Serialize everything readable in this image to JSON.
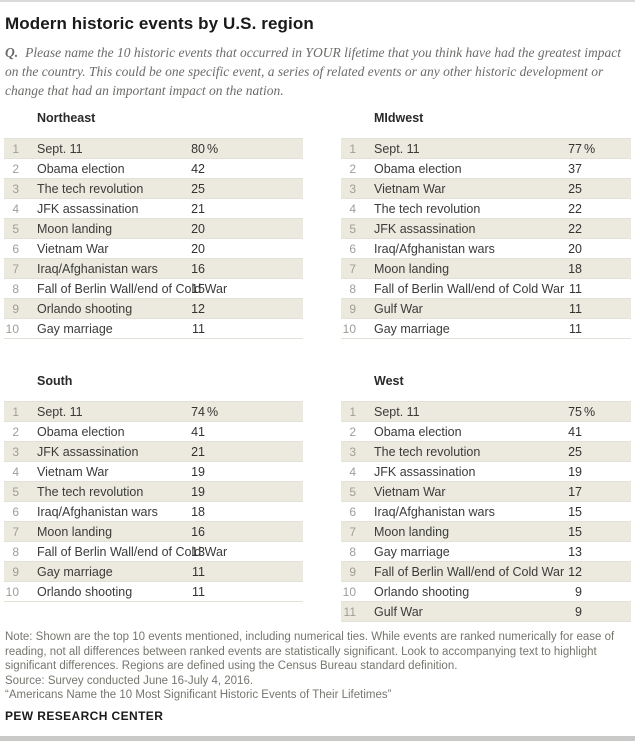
{
  "header": {
    "title": "Modern historic events by U.S. region",
    "question_prefix": "Q.",
    "question": "Please name the 10 historic events that occurred in YOUR lifetime that you think have had the greatest impact on the country. This could be one specific event, a series of related events or any other historic development or change that had an important impact on the nation."
  },
  "chart_data": {
    "type": "table",
    "title": "Modern historic events by U.S. region",
    "value_unit": "% of respondents",
    "tables": [
      {
        "region": "Northeast",
        "rows": [
          {
            "rank": "1",
            "event": "Sept. 11",
            "value": "80",
            "suffix": "%"
          },
          {
            "rank": "2",
            "event": "Obama election",
            "value": "42",
            "suffix": ""
          },
          {
            "rank": "3",
            "event": "The tech revolution",
            "value": "25",
            "suffix": ""
          },
          {
            "rank": "4",
            "event": "JFK assassination",
            "value": "21",
            "suffix": ""
          },
          {
            "rank": "5",
            "event": "Moon landing",
            "value": "20",
            "suffix": ""
          },
          {
            "rank": "6",
            "event": "Vietnam War",
            "value": "20",
            "suffix": ""
          },
          {
            "rank": "7",
            "event": "Iraq/Afghanistan wars",
            "value": "16",
            "suffix": ""
          },
          {
            "rank": "8",
            "event": "Fall of Berlin Wall/end of Cold War",
            "value": "15",
            "suffix": ""
          },
          {
            "rank": "9",
            "event": "Orlando shooting",
            "value": "12",
            "suffix": ""
          },
          {
            "rank": "10",
            "event": "Gay marriage",
            "value": "11",
            "suffix": ""
          }
        ]
      },
      {
        "region": "MIdwest",
        "rows": [
          {
            "rank": "1",
            "event": "Sept. 11",
            "value": "77",
            "suffix": "%"
          },
          {
            "rank": "2",
            "event": "Obama election",
            "value": "37",
            "suffix": ""
          },
          {
            "rank": "3",
            "event": "Vietnam War",
            "value": "25",
            "suffix": ""
          },
          {
            "rank": "4",
            "event": "The tech revolution",
            "value": "22",
            "suffix": ""
          },
          {
            "rank": "5",
            "event": "JFK assassination",
            "value": "22",
            "suffix": ""
          },
          {
            "rank": "6",
            "event": "Iraq/Afghanistan wars",
            "value": "20",
            "suffix": ""
          },
          {
            "rank": "7",
            "event": "Moon landing",
            "value": "18",
            "suffix": ""
          },
          {
            "rank": "8",
            "event": "Fall of Berlin Wall/end of Cold War",
            "value": "11",
            "suffix": ""
          },
          {
            "rank": "9",
            "event": "Gulf War",
            "value": "11",
            "suffix": ""
          },
          {
            "rank": "10",
            "event": "Gay marriage",
            "value": "11",
            "suffix": ""
          }
        ]
      },
      {
        "region": "South",
        "rows": [
          {
            "rank": "1",
            "event": "Sept. 11",
            "value": "74",
            "suffix": "%"
          },
          {
            "rank": "2",
            "event": "Obama election",
            "value": "41",
            "suffix": ""
          },
          {
            "rank": "3",
            "event": "JFK assassination",
            "value": "21",
            "suffix": ""
          },
          {
            "rank": "4",
            "event": "Vietnam War",
            "value": "19",
            "suffix": ""
          },
          {
            "rank": "5",
            "event": "The tech revolution",
            "value": "19",
            "suffix": ""
          },
          {
            "rank": "6",
            "event": "Iraq/Afghanistan wars",
            "value": "18",
            "suffix": ""
          },
          {
            "rank": "7",
            "event": "Moon landing",
            "value": "16",
            "suffix": ""
          },
          {
            "rank": "8",
            "event": "Fall of Berlin Wall/end of Cold War",
            "value": "13",
            "suffix": ""
          },
          {
            "rank": "9",
            "event": "Gay marriage",
            "value": "11",
            "suffix": ""
          },
          {
            "rank": "10",
            "event": "Orlando shooting",
            "value": "11",
            "suffix": ""
          }
        ]
      },
      {
        "region": "West",
        "rows": [
          {
            "rank": "1",
            "event": "Sept. 11",
            "value": "75",
            "suffix": "%"
          },
          {
            "rank": "2",
            "event": "Obama election",
            "value": "41",
            "suffix": ""
          },
          {
            "rank": "3",
            "event": "The tech revolution",
            "value": "25",
            "suffix": ""
          },
          {
            "rank": "4",
            "event": "JFK assassination",
            "value": "19",
            "suffix": ""
          },
          {
            "rank": "5",
            "event": "Vietnam War",
            "value": "17",
            "suffix": ""
          },
          {
            "rank": "6",
            "event": "Iraq/Afghanistan wars",
            "value": "15",
            "suffix": ""
          },
          {
            "rank": "7",
            "event": "Moon landing",
            "value": "15",
            "suffix": ""
          },
          {
            "rank": "8",
            "event": "Gay marriage",
            "value": "13",
            "suffix": ""
          },
          {
            "rank": "9",
            "event": "Fall of Berlin Wall/end of Cold War",
            "value": "12",
            "suffix": ""
          },
          {
            "rank": "10",
            "event": "Orlando shooting",
            "value": "9",
            "suffix": ""
          },
          {
            "rank": "11",
            "event": "Gulf War",
            "value": "9",
            "suffix": ""
          }
        ]
      }
    ]
  },
  "footer": {
    "note": "Note: Shown are the top 10 events mentioned, including numerical ties. While events are ranked numerically for ease of reading, not all differences between ranked events are statistically significant. Look to accompanying text to highlight significant differences. Regions are defined using the Census Bureau standard definition.",
    "source": "Source: Survey conducted June 16-July 4, 2016.",
    "report_title": "“Americans Name the 10 Most Significant Historic Events of Their Lifetimes”",
    "brand": "PEW RESEARCH CENTER"
  },
  "colors": {
    "row_stripe": "#eceadf",
    "row_border": "#e2e1d8",
    "rank_gray": "#9e9e97",
    "text_dark": "#3b3b39",
    "note_gray": "#76766f",
    "bottom_bar": "#c9c9c7"
  }
}
